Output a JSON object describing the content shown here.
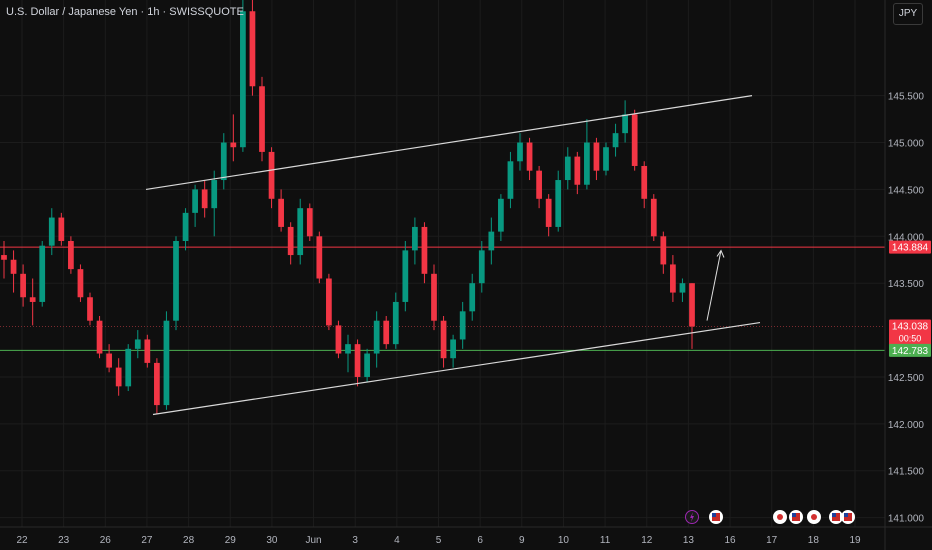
{
  "header": {
    "symbol_title": "U.S. Dollar / Japanese Yen · 1h · SWISSQUOTE",
    "currency_button": "JPY"
  },
  "colors": {
    "background": "#0f0f0f",
    "grid": "#1c1c1c",
    "up": "#089981",
    "down": "#f23645",
    "resistance": "#f23645",
    "support": "#4caf50",
    "trendline": "#d9d9d9",
    "axis_text": "#b2b5be"
  },
  "chart_data": {
    "type": "candlestick",
    "title": "U.S. Dollar / Japanese Yen · 1h · SWISSQUOTE",
    "ylim": [
      140.9,
      146.52
    ],
    "y_ticks": [
      "145.500",
      "145.000",
      "144.500",
      "144.000",
      "143.500",
      "142.500",
      "142.000",
      "141.500",
      "141.000"
    ],
    "x_ticks": [
      "22",
      "23",
      "26",
      "27",
      "28",
      "29",
      "30",
      "Jun",
      "3",
      "4",
      "5",
      "6",
      "9",
      "10",
      "11",
      "12",
      "13",
      "16",
      "17",
      "18",
      "19"
    ],
    "grid": true,
    "price_labels": [
      {
        "role": "resistance",
        "label": "143.884",
        "value": 143.884
      },
      {
        "role": "last",
        "label": "143.038",
        "sublabel": "00:50",
        "value": 143.038
      },
      {
        "role": "support",
        "label": "142.783",
        "value": 142.783
      }
    ],
    "horizontal_lines": [
      {
        "role": "resistance",
        "value": 143.884
      },
      {
        "role": "support",
        "value": 142.783
      }
    ],
    "trend_channel": {
      "upper": [
        {
          "date": "May 27",
          "price": 144.5
        },
        {
          "date": "Jun 16",
          "price": 145.5
        }
      ],
      "lower": [
        {
          "date": "May 26 late",
          "price": 142.1
        },
        {
          "date": "Jun 16",
          "price": 143.08
        }
      ]
    },
    "projection_arrow": {
      "from": 143.08,
      "to": 143.87
    },
    "series": [
      {
        "date": "22",
        "open": 143.8,
        "high": 143.95,
        "low": 143.55,
        "close": 143.75
      },
      {
        "date": "22",
        "open": 143.75,
        "high": 143.85,
        "low": 143.4,
        "close": 143.6
      },
      {
        "date": "22",
        "open": 143.6,
        "high": 143.7,
        "low": 143.25,
        "close": 143.35
      },
      {
        "date": "23",
        "open": 143.35,
        "high": 143.55,
        "low": 143.05,
        "close": 143.3
      },
      {
        "date": "23",
        "open": 143.3,
        "high": 143.95,
        "low": 143.25,
        "close": 143.9
      },
      {
        "date": "23",
        "open": 143.9,
        "high": 144.3,
        "low": 143.8,
        "close": 144.2
      },
      {
        "date": "23",
        "open": 144.2,
        "high": 144.25,
        "low": 143.9,
        "close": 143.95
      },
      {
        "date": "23",
        "open": 143.95,
        "high": 144.0,
        "low": 143.6,
        "close": 143.65
      },
      {
        "date": "23",
        "open": 143.65,
        "high": 143.7,
        "low": 143.3,
        "close": 143.35
      },
      {
        "date": "23",
        "open": 143.35,
        "high": 143.4,
        "low": 143.05,
        "close": 143.1
      },
      {
        "date": "26",
        "open": 143.1,
        "high": 143.15,
        "low": 142.7,
        "close": 142.75
      },
      {
        "date": "26",
        "open": 142.75,
        "high": 142.85,
        "low": 142.55,
        "close": 142.6
      },
      {
        "date": "26",
        "open": 142.6,
        "high": 142.7,
        "low": 142.3,
        "close": 142.4
      },
      {
        "date": "26",
        "open": 142.4,
        "high": 142.85,
        "low": 142.35,
        "close": 142.8
      },
      {
        "date": "26",
        "open": 142.8,
        "high": 143.0,
        "low": 142.7,
        "close": 142.9
      },
      {
        "date": "27",
        "open": 142.9,
        "high": 142.95,
        "low": 142.6,
        "close": 142.65
      },
      {
        "date": "27",
        "open": 142.65,
        "high": 142.7,
        "low": 142.1,
        "close": 142.2
      },
      {
        "date": "27",
        "open": 142.2,
        "high": 143.2,
        "low": 142.15,
        "close": 143.1
      },
      {
        "date": "27",
        "open": 143.1,
        "high": 144.0,
        "low": 143.0,
        "close": 143.95
      },
      {
        "date": "27",
        "open": 143.95,
        "high": 144.3,
        "low": 143.85,
        "close": 144.25
      },
      {
        "date": "28",
        "open": 144.25,
        "high": 144.55,
        "low": 144.1,
        "close": 144.5
      },
      {
        "date": "28",
        "open": 144.5,
        "high": 144.6,
        "low": 144.2,
        "close": 144.3
      },
      {
        "date": "28",
        "open": 144.3,
        "high": 144.7,
        "low": 144.0,
        "close": 144.6
      },
      {
        "date": "28",
        "open": 144.6,
        "high": 145.1,
        "low": 144.5,
        "close": 145.0
      },
      {
        "date": "28",
        "open": 145.0,
        "high": 145.3,
        "low": 144.8,
        "close": 144.95
      },
      {
        "date": "29",
        "open": 144.95,
        "high": 146.52,
        "low": 144.9,
        "close": 146.4
      },
      {
        "date": "29",
        "open": 146.4,
        "high": 146.52,
        "low": 145.5,
        "close": 145.6
      },
      {
        "date": "29",
        "open": 145.6,
        "high": 145.7,
        "low": 144.8,
        "close": 144.9
      },
      {
        "date": "29",
        "open": 144.9,
        "high": 144.95,
        "low": 144.3,
        "close": 144.4
      },
      {
        "date": "30",
        "open": 144.4,
        "high": 144.5,
        "low": 144.05,
        "close": 144.1
      },
      {
        "date": "30",
        "open": 144.1,
        "high": 144.15,
        "low": 143.7,
        "close": 143.8
      },
      {
        "date": "30",
        "open": 143.8,
        "high": 144.4,
        "low": 143.7,
        "close": 144.3
      },
      {
        "date": "30",
        "open": 144.3,
        "high": 144.35,
        "low": 143.95,
        "close": 144.0
      },
      {
        "date": "30",
        "open": 144.0,
        "high": 144.05,
        "low": 143.5,
        "close": 143.55
      },
      {
        "date": "Jun",
        "open": 143.55,
        "high": 143.6,
        "low": 143.0,
        "close": 143.05
      },
      {
        "date": "Jun",
        "open": 143.05,
        "high": 143.1,
        "low": 142.7,
        "close": 142.75
      },
      {
        "date": "Jun",
        "open": 142.75,
        "high": 142.95,
        "low": 142.55,
        "close": 142.85
      },
      {
        "date": "Jun",
        "open": 142.85,
        "high": 142.9,
        "low": 142.4,
        "close": 142.5
      },
      {
        "date": "3",
        "open": 142.5,
        "high": 142.8,
        "low": 142.45,
        "close": 142.75
      },
      {
        "date": "3",
        "open": 142.75,
        "high": 143.2,
        "low": 142.6,
        "close": 143.1
      },
      {
        "date": "3",
        "open": 143.1,
        "high": 143.15,
        "low": 142.8,
        "close": 142.85
      },
      {
        "date": "3",
        "open": 142.85,
        "high": 143.4,
        "low": 142.8,
        "close": 143.3
      },
      {
        "date": "4",
        "open": 143.3,
        "high": 143.95,
        "low": 143.2,
        "close": 143.85
      },
      {
        "date": "4",
        "open": 143.85,
        "high": 144.2,
        "low": 143.7,
        "close": 144.1
      },
      {
        "date": "4",
        "open": 144.1,
        "high": 144.15,
        "low": 143.5,
        "close": 143.6
      },
      {
        "date": "4",
        "open": 143.6,
        "high": 143.7,
        "low": 143.0,
        "close": 143.1
      },
      {
        "date": "5",
        "open": 143.1,
        "high": 143.15,
        "low": 142.6,
        "close": 142.7
      },
      {
        "date": "5",
        "open": 142.7,
        "high": 142.95,
        "low": 142.6,
        "close": 142.9
      },
      {
        "date": "5",
        "open": 142.9,
        "high": 143.3,
        "low": 142.8,
        "close": 143.2
      },
      {
        "date": "5",
        "open": 143.2,
        "high": 143.6,
        "low": 143.1,
        "close": 143.5
      },
      {
        "date": "6",
        "open": 143.5,
        "high": 143.95,
        "low": 143.4,
        "close": 143.85
      },
      {
        "date": "6",
        "open": 143.85,
        "high": 144.2,
        "low": 143.7,
        "close": 144.05
      },
      {
        "date": "6",
        "open": 144.05,
        "high": 144.45,
        "low": 143.95,
        "close": 144.4
      },
      {
        "date": "6",
        "open": 144.4,
        "high": 144.9,
        "low": 144.3,
        "close": 144.8
      },
      {
        "date": "9",
        "open": 144.8,
        "high": 145.1,
        "low": 144.7,
        "close": 145.0
      },
      {
        "date": "9",
        "open": 145.0,
        "high": 145.05,
        "low": 144.6,
        "close": 144.7
      },
      {
        "date": "9",
        "open": 144.7,
        "high": 144.75,
        "low": 144.3,
        "close": 144.4
      },
      {
        "date": "9",
        "open": 144.4,
        "high": 144.45,
        "low": 144.0,
        "close": 144.1
      },
      {
        "date": "10",
        "open": 144.1,
        "high": 144.7,
        "low": 144.05,
        "close": 144.6
      },
      {
        "date": "10",
        "open": 144.6,
        "high": 144.95,
        "low": 144.5,
        "close": 144.85
      },
      {
        "date": "10",
        "open": 144.85,
        "high": 144.9,
        "low": 144.45,
        "close": 144.55
      },
      {
        "date": "10",
        "open": 144.55,
        "high": 145.25,
        "low": 144.5,
        "close": 145.0
      },
      {
        "date": "11",
        "open": 145.0,
        "high": 145.05,
        "low": 144.6,
        "close": 144.7
      },
      {
        "date": "11",
        "open": 144.7,
        "high": 145.0,
        "low": 144.65,
        "close": 144.95
      },
      {
        "date": "11",
        "open": 144.95,
        "high": 145.2,
        "low": 144.85,
        "close": 145.1
      },
      {
        "date": "11",
        "open": 145.1,
        "high": 145.45,
        "low": 145.0,
        "close": 145.3
      },
      {
        "date": "12",
        "open": 145.3,
        "high": 145.35,
        "low": 144.7,
        "close": 144.75
      },
      {
        "date": "12",
        "open": 144.75,
        "high": 144.8,
        "low": 144.3,
        "close": 144.4
      },
      {
        "date": "12",
        "open": 144.4,
        "high": 144.45,
        "low": 143.95,
        "close": 144.0
      },
      {
        "date": "12",
        "open": 144.0,
        "high": 144.05,
        "low": 143.6,
        "close": 143.7
      },
      {
        "date": "13",
        "open": 143.7,
        "high": 143.8,
        "low": 143.3,
        "close": 143.4
      },
      {
        "date": "13",
        "open": 143.4,
        "high": 143.55,
        "low": 143.3,
        "close": 143.5
      },
      {
        "date": "13",
        "open": 143.5,
        "high": 143.5,
        "low": 142.8,
        "close": 143.038
      }
    ]
  },
  "event_icons": [
    {
      "name": "lightning-event-icon",
      "symbol": "⚡",
      "bg": "#1a1a1a",
      "fg": "#9c27b0",
      "border": "#9c27b0"
    },
    {
      "name": "us-flag-event-icon",
      "symbol": "🇺🇸",
      "bg": "#ffffff",
      "fg": "#1e3f9a",
      "border": "#ffffff"
    },
    {
      "name": "japan-flag-event-icon",
      "symbol": "●",
      "bg": "#ffffff",
      "fg": "#d32f2f",
      "border": "#ffffff"
    },
    {
      "name": "us-flag-event-icon",
      "symbol": "🇺🇸",
      "bg": "#ffffff",
      "fg": "#1e3f9a",
      "border": "#ffffff"
    },
    {
      "name": "japan-flag-event-icon",
      "symbol": "●",
      "bg": "#ffffff",
      "fg": "#d32f2f",
      "border": "#ffffff"
    },
    {
      "name": "us-flag-event-icon",
      "symbol": "🇺🇸",
      "bg": "#ffffff",
      "fg": "#1e3f9a",
      "border": "#ffffff"
    },
    {
      "name": "us-flag-event-icon",
      "symbol": "🇺🇸",
      "bg": "#ffffff",
      "fg": "#1e3f9a",
      "border": "#ffffff"
    }
  ]
}
